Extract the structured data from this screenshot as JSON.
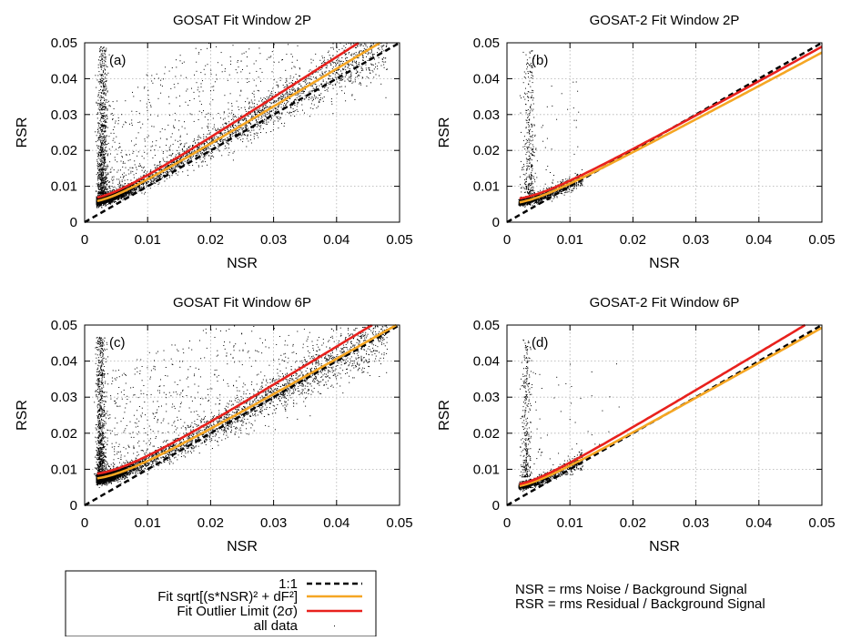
{
  "figure": {
    "note_lines": [
      "NSR = rms Noise / Background Signal",
      "RSR = rms Residual / Background Signal"
    ],
    "legend": {
      "items": [
        {
          "label": "1:1",
          "style": "dashed",
          "color": "#000000"
        },
        {
          "label": "Fit sqrt[(s*NSR)² + dF²]",
          "style": "solid",
          "color": "#f5a623"
        },
        {
          "label": "Fit Outlier Limit (2σ)",
          "style": "solid",
          "color": "#e8211d"
        },
        {
          "label": "all data",
          "style": "dot",
          "color": "#000000"
        }
      ]
    }
  },
  "colors": {
    "fit": "#f5a623",
    "outlier": "#e8211d",
    "data": "#000000"
  },
  "chart_data": [
    {
      "type": "scatter",
      "id": "a",
      "title": "GOSAT Fit Window 2P",
      "panel_label": "(a)",
      "xlabel": "NSR",
      "ylabel": "RSR",
      "xlim": [
        0,
        0.05
      ],
      "ylim": [
        0,
        0.05
      ],
      "xticks": [
        "0",
        "0.01",
        "0.02",
        "0.03",
        "0.04",
        "0.05"
      ],
      "yticks": [
        "0",
        "0.01",
        "0.02",
        "0.03",
        "0.04",
        "0.05"
      ],
      "grid": true,
      "series": [
        {
          "name": "1:1",
          "kind": "line",
          "x": [
            0,
            0.05
          ],
          "y": [
            0,
            0.05
          ]
        },
        {
          "name": "Fit sqrt[(s*NSR)² + dF²]",
          "kind": "line",
          "s": 1.06,
          "dF": 0.0055
        },
        {
          "name": "Fit Outlier Limit (2σ)",
          "kind": "line",
          "s": 1.14,
          "dF": 0.0065
        },
        {
          "name": "all data",
          "kind": "scatter",
          "spike_x": 0.0028,
          "spike_ymax": 0.049,
          "density": "high",
          "spread": 0.02
        }
      ]
    },
    {
      "type": "scatter",
      "id": "b",
      "title": "GOSAT-2 Fit Window 2P",
      "panel_label": "(b)",
      "xlabel": "NSR",
      "ylabel": "RSR",
      "xlim": [
        0,
        0.05
      ],
      "ylim": [
        0,
        0.05
      ],
      "xticks": [
        "0",
        "0.01",
        "0.02",
        "0.03",
        "0.04",
        "0.05"
      ],
      "yticks": [
        "0",
        "0.01",
        "0.02",
        "0.03",
        "0.04",
        "0.05"
      ],
      "grid": true,
      "series": [
        {
          "name": "1:1",
          "kind": "line",
          "x": [
            0,
            0.05
          ],
          "y": [
            0,
            0.05
          ]
        },
        {
          "name": "Fit sqrt[(s*NSR)² + dF²]",
          "kind": "line",
          "s": 0.94,
          "dF": 0.0052
        },
        {
          "name": "Fit Outlier Limit (2σ)",
          "kind": "line",
          "s": 0.97,
          "dF": 0.0063
        },
        {
          "name": "all data",
          "kind": "scatter",
          "spike_x": 0.0035,
          "spike_ymax": 0.048,
          "density": "low",
          "spread": 0.006
        }
      ]
    },
    {
      "type": "scatter",
      "id": "c",
      "title": "GOSAT Fit Window 6P",
      "panel_label": "(c)",
      "xlabel": "NSR",
      "ylabel": "RSR",
      "xlim": [
        0,
        0.05
      ],
      "ylim": [
        0,
        0.05
      ],
      "xticks": [
        "0",
        "0.01",
        "0.02",
        "0.03",
        "0.04",
        "0.05"
      ],
      "yticks": [
        "0",
        "0.01",
        "0.02",
        "0.03",
        "0.04",
        "0.05"
      ],
      "grid": true,
      "series": [
        {
          "name": "1:1",
          "kind": "line",
          "x": [
            0,
            0.05
          ],
          "y": [
            0,
            0.05
          ]
        },
        {
          "name": "Fit sqrt[(s*NSR)² + dF²]",
          "kind": "line",
          "s": 1.0,
          "dF": 0.0072
        },
        {
          "name": "Fit Outlier Limit (2σ)",
          "kind": "line",
          "s": 1.08,
          "dF": 0.0085
        },
        {
          "name": "all data",
          "kind": "scatter",
          "spike_x": 0.0025,
          "spike_ymax": 0.047,
          "density": "high",
          "spread": 0.022
        }
      ]
    },
    {
      "type": "scatter",
      "id": "d",
      "title": "GOSAT-2 Fit Window 6P",
      "panel_label": "(d)",
      "xlabel": "NSR",
      "ylabel": "RSR",
      "xlim": [
        0,
        0.05
      ],
      "ylim": [
        0,
        0.05
      ],
      "xticks": [
        "0",
        "0.01",
        "0.02",
        "0.03",
        "0.04",
        "0.05"
      ],
      "yticks": [
        "0",
        "0.01",
        "0.02",
        "0.03",
        "0.04",
        "0.05"
      ],
      "grid": true,
      "series": [
        {
          "name": "1:1",
          "kind": "line",
          "x": [
            0,
            0.05
          ],
          "y": [
            0,
            0.05
          ]
        },
        {
          "name": "Fit sqrt[(s*NSR)² + dF²]",
          "kind": "line",
          "s": 0.98,
          "dF": 0.005
        },
        {
          "name": "Fit Outlier Limit (2σ)",
          "kind": "line",
          "s": 1.05,
          "dF": 0.0055
        },
        {
          "name": "all data",
          "kind": "scatter",
          "spike_x": 0.003,
          "spike_ymax": 0.046,
          "density": "low",
          "spread": 0.01
        }
      ]
    }
  ]
}
